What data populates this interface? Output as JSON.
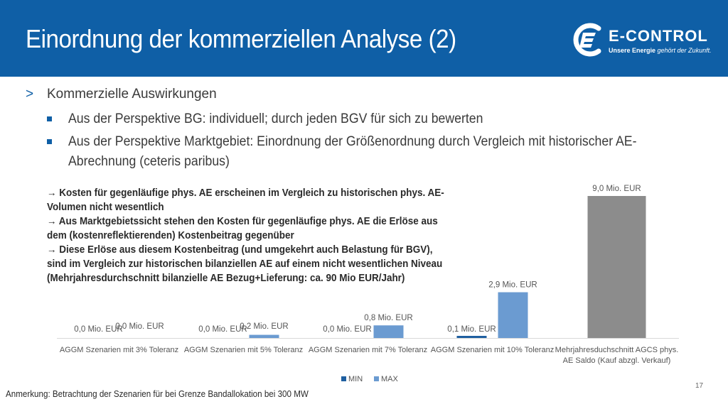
{
  "slide": {
    "title": "Einordnung der kommerziellen Analyse (2)",
    "page_number": "17",
    "footnote": "Anmerkung: Betrachtung der Szenarien für bei Grenze Bandallokation bei 300 MW"
  },
  "logo": {
    "word": "E-CONTROL",
    "tag_bold": "Unsere Energie",
    "tag_italic": " gehört der Zukunft."
  },
  "bullets": {
    "level1": "Kommerzielle Auswirkungen",
    "level1_marker": ">",
    "level2": [
      [
        "Aus der Perspektive BG: individuell; durch jeden BGV für sich zu bewerten"
      ],
      [
        "Aus der Perspektive Marktgebiet: Einordnung der Größenordnung durch Vergleich mit historischer AE-",
        "Abrechnung (ceteris paribus)"
      ]
    ]
  },
  "note": [
    "→ Kosten für gegenläufige phys. AE erscheinen im Vergleich zu historischen phys. AE-",
    "Volumen nicht wesentlich",
    "→ Aus Marktgebietssicht stehen den Kosten für gegenläufige phys. AE die Erlöse aus",
    "dem (kostenreflektierenden) Kostenbeitrag gegenüber",
    "→ Diese Erlöse aus diesem Kostenbeitrag (und umgekehrt auch Belastung für BGV),",
    "sind im Vergleich zur historischen bilanziellen AE auf einem nicht wesentlichen Niveau",
    "(Mehrjahresdurchschnitt bilanzielle AE Bezug+Lieferung: ca. 90 Mio EUR/Jahr)"
  ],
  "chart_data": {
    "type": "bar",
    "categories": [
      [
        "AGGM Szenarien mit 3% Toleranz"
      ],
      [
        "AGGM Szenarien mit 5% Toleranz"
      ],
      [
        "AGGM Szenarien mit 7% Toleranz"
      ],
      [
        "AGGM Szenarien mit 10% Toleranz"
      ],
      [
        "Mehrjahresduchschnitt AGCS phys.",
        "AE Saldo (Kauf abzgl. Verkauf)"
      ]
    ],
    "series": [
      {
        "name": "MIN",
        "color": "#1f5fa0",
        "values": [
          0.0,
          0.0,
          0.0,
          0.1,
          null
        ],
        "labels": [
          "0,0 Mio. EUR",
          "0,0 Mio. EUR",
          "0,0 Mio. EUR",
          "0,1 Mio. EUR",
          null
        ]
      },
      {
        "name": "MAX",
        "color": "#6b9bd1",
        "values": [
          0.0,
          0.2,
          0.8,
          2.9,
          null
        ],
        "labels": [
          "0,0 Mio. EUR",
          "0,2 Mio. EUR",
          "0,8 Mio. EUR",
          "2,9 Mio. EUR",
          null
        ]
      },
      {
        "name": "",
        "color": "#8c8c8c",
        "values": [
          null,
          null,
          null,
          null,
          9.0
        ],
        "labels": [
          null,
          null,
          null,
          null,
          "9,0 Mio. EUR"
        ]
      }
    ],
    "legend": [
      "MIN",
      "MAX"
    ],
    "legend_position": "bottom",
    "grid": false,
    "ylim": [
      0,
      9.0
    ]
  }
}
